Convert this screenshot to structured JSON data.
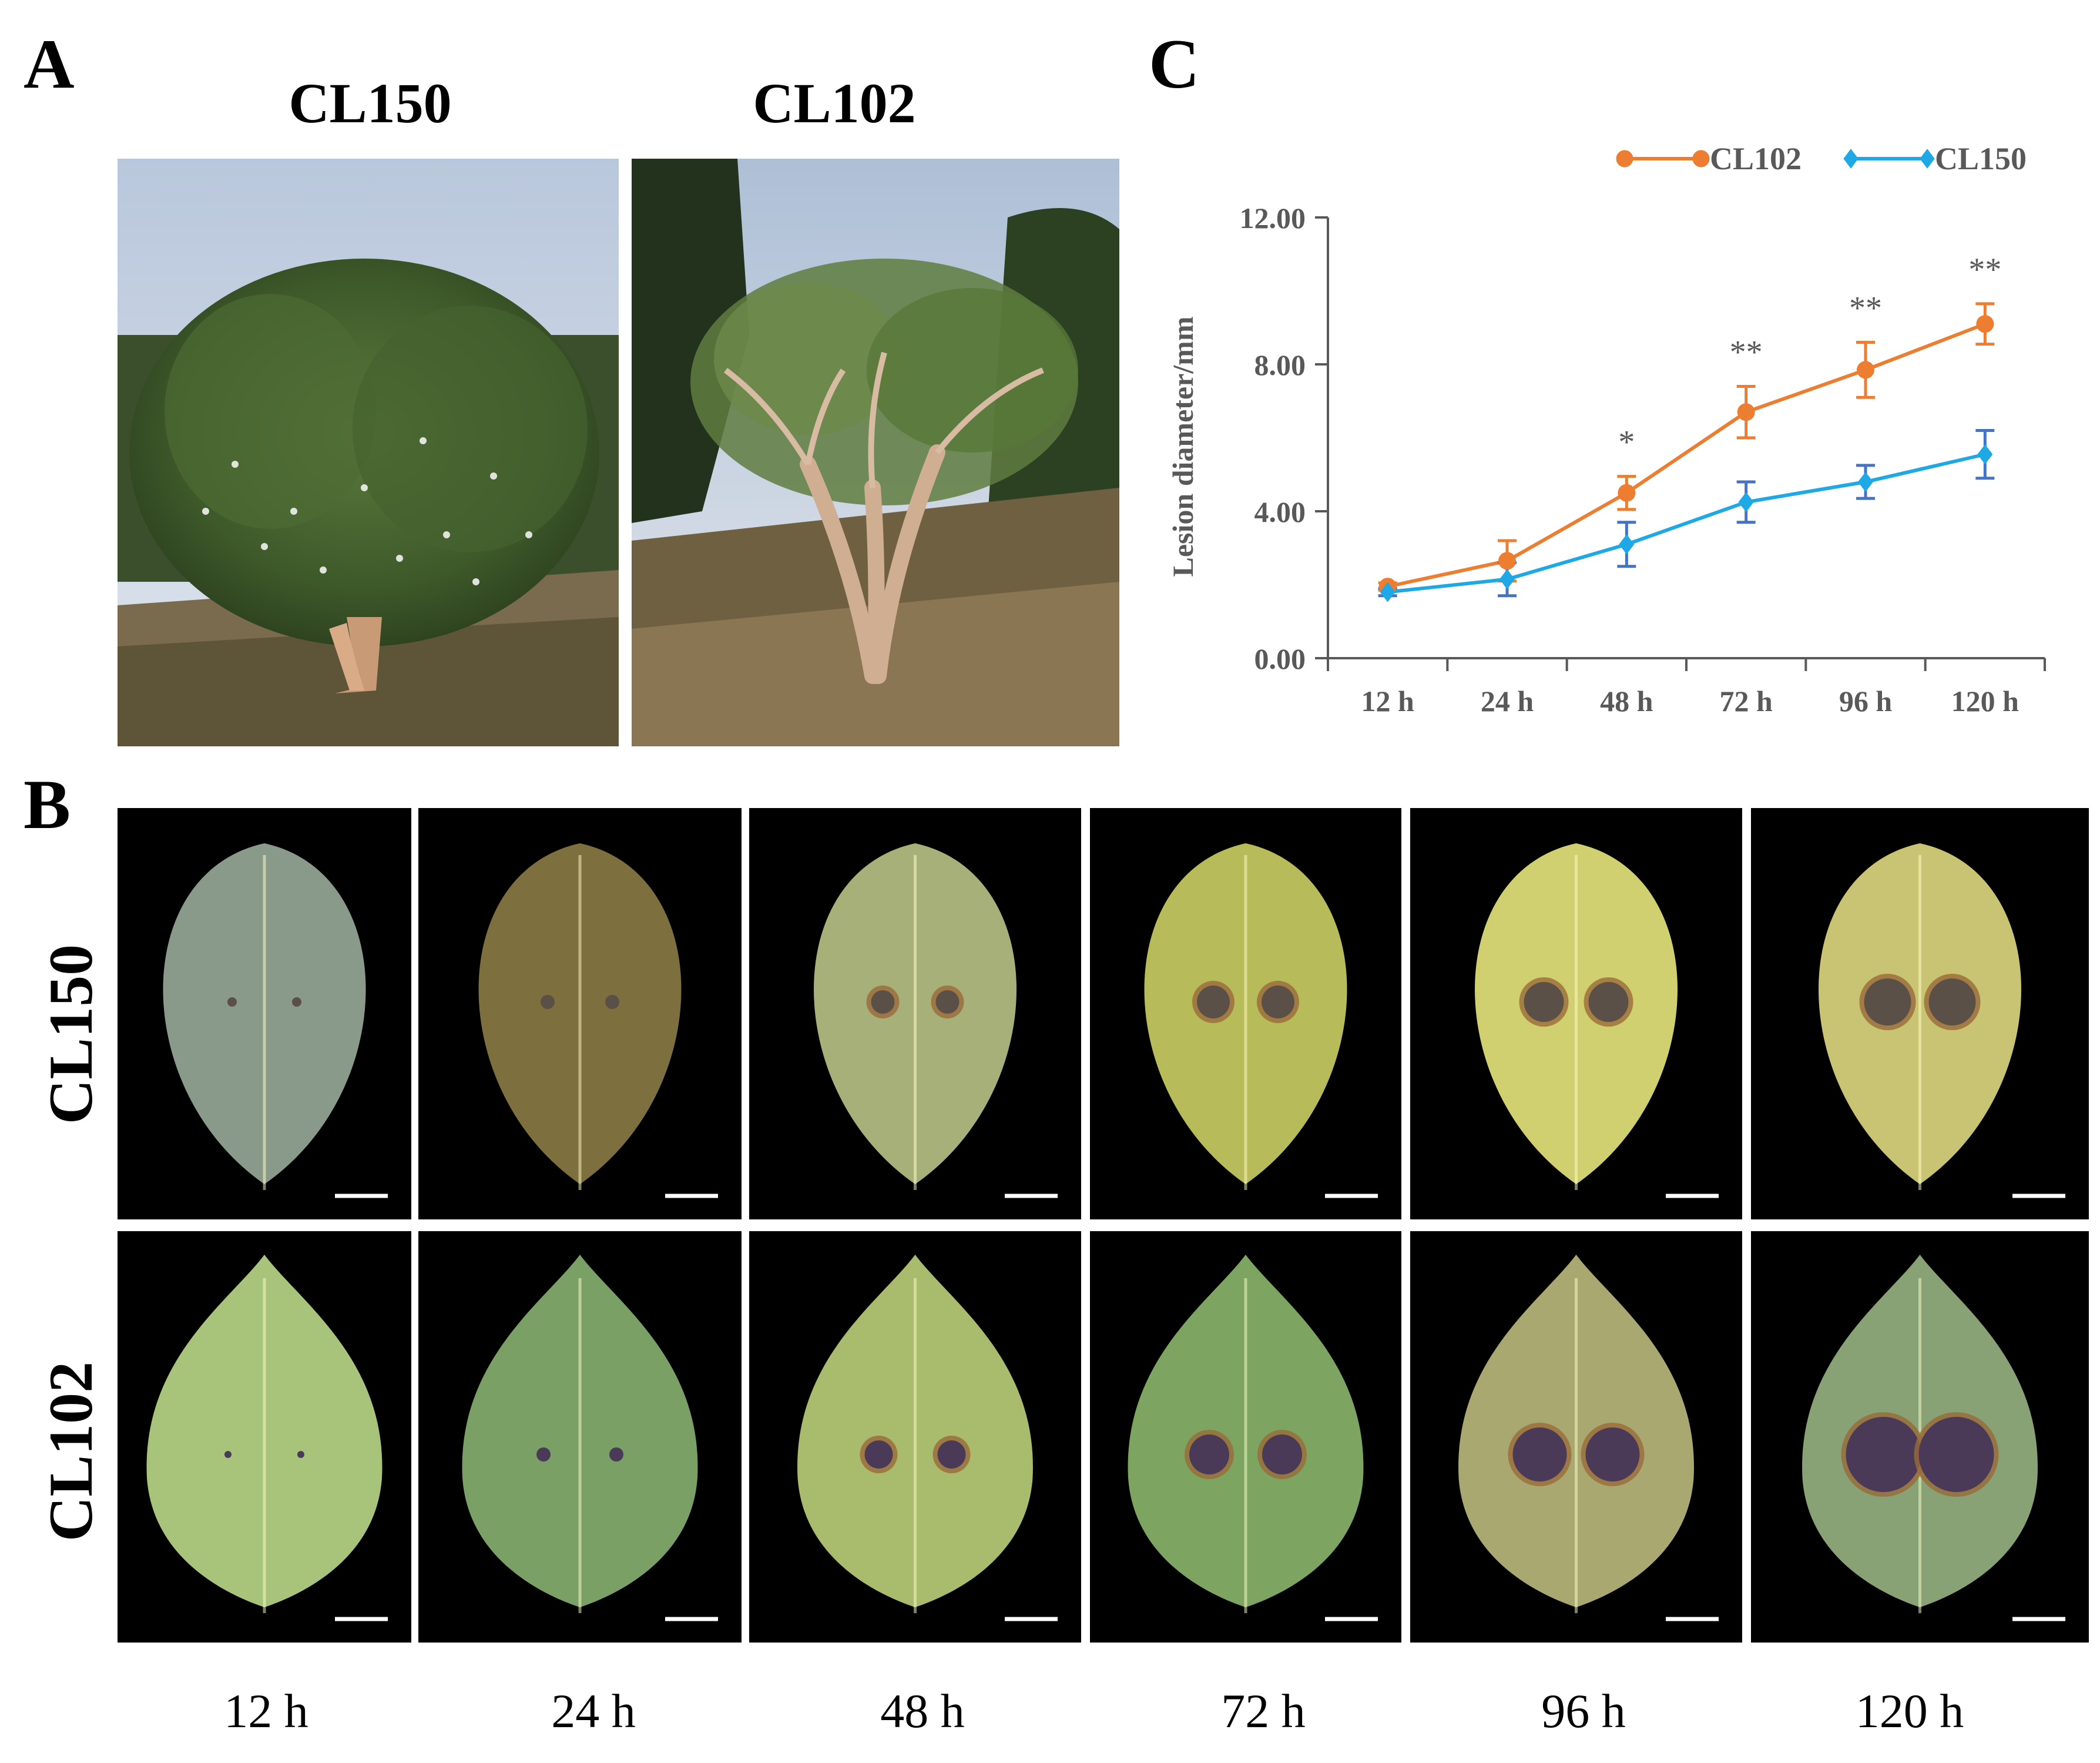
{
  "panels": {
    "a": {
      "letter": "A",
      "cultivars": [
        "CL150",
        "CL102"
      ]
    },
    "b": {
      "letter": "B",
      "rows": [
        "CL150",
        "CL102"
      ],
      "times": [
        "12 h",
        "24 h",
        "48 h",
        "72 h",
        "96 h",
        "120 h"
      ]
    },
    "c": {
      "letter": "C"
    }
  },
  "colors": {
    "cl102": "#ED7D31",
    "cl150": "#1EA8E6",
    "cl150_errorbar": "#4472C4",
    "axis": "#595959"
  },
  "chart_data": {
    "type": "line",
    "ylabel": "Lesion diameter/mm",
    "xlabel": "",
    "categories": [
      "12 h",
      "24 h",
      "48 h",
      "72 h",
      "96 h",
      "120 h"
    ],
    "ylim": [
      0,
      12
    ],
    "yticks": [
      "0.00",
      "4.00",
      "8.00",
      "12.00"
    ],
    "legend_position": "top",
    "series": [
      {
        "name": "CL102",
        "values": [
          1.95,
          2.65,
          4.5,
          6.7,
          7.85,
          9.1
        ],
        "error": [
          0.1,
          0.55,
          0.45,
          0.7,
          0.75,
          0.55
        ],
        "marker": "circle"
      },
      {
        "name": "CL150",
        "values": [
          1.8,
          2.15,
          3.1,
          4.25,
          4.8,
          5.55
        ],
        "error": [
          0.1,
          0.45,
          0.6,
          0.55,
          0.45,
          0.65
        ],
        "marker": "diamond"
      }
    ],
    "annotations": [
      "",
      "",
      "*",
      "**",
      "**",
      "**"
    ]
  }
}
